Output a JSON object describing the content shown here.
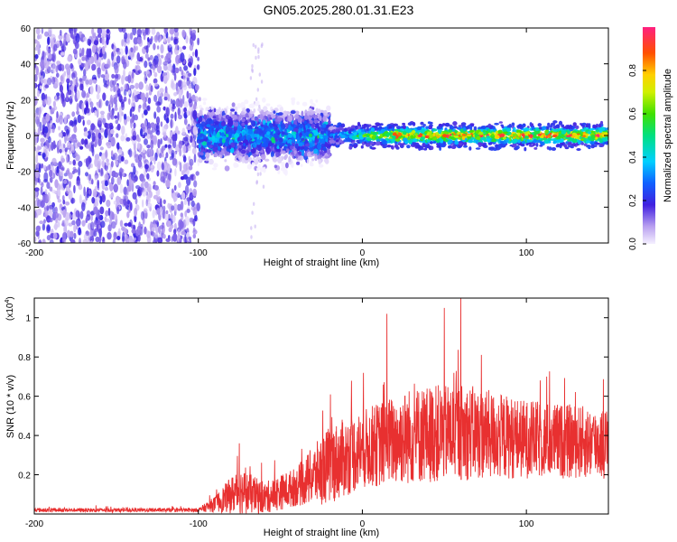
{
  "title": "GN05.2025.280.01.31.E23",
  "chart_data": [
    {
      "type": "heatmap",
      "xlabel": "Height of straight line (km)",
      "ylabel": "Frequency (Hz)",
      "xlim": [
        -200,
        150
      ],
      "ylim": [
        -60,
        60
      ],
      "xticks": [
        -200,
        -100,
        0,
        100
      ],
      "yticks": [
        -60,
        -40,
        -20,
        0,
        20,
        40,
        60
      ],
      "colorbar": {
        "label": "Normalized spectral amplitude",
        "range": [
          0.0,
          1.0
        ],
        "ticks": [
          0.0,
          0.2,
          0.4,
          0.6,
          0.8
        ]
      },
      "regions": [
        {
          "x_range": [
            -200,
            -100
          ],
          "description": "broadband noise",
          "amplitude": 0.1
        },
        {
          "x_range": [
            -100,
            -20
          ],
          "center_freq_hz": 0,
          "half_width_hz": 12,
          "amplitude": 0.25
        },
        {
          "x_range": [
            -20,
            150
          ],
          "center_freq_hz": 0,
          "half_width_hz": 5,
          "amplitude": 0.8
        }
      ]
    },
    {
      "type": "line",
      "xlabel": "Height of straight line (km)",
      "ylabel": "SNR (10 * v/v)",
      "yscale_label": "(x10",
      "yscale_exp": "4",
      "xlim": [
        -200,
        150
      ],
      "ylim": [
        0,
        1.1
      ],
      "xticks": [
        -200,
        -100,
        0,
        100
      ],
      "yticks": [
        0.2,
        0.4,
        0.6,
        0.8,
        1.0
      ],
      "series": [
        {
          "name": "SNR",
          "color": "#e83030",
          "envelope": [
            {
              "x": -200,
              "mean": 0.02,
              "spread": 0.01
            },
            {
              "x": -100,
              "mean": 0.02,
              "spread": 0.01
            },
            {
              "x": -90,
              "mean": 0.05,
              "spread": 0.04
            },
            {
              "x": -75,
              "mean": 0.12,
              "spread": 0.12
            },
            {
              "x": -60,
              "mean": 0.08,
              "spread": 0.08
            },
            {
              "x": -40,
              "mean": 0.14,
              "spread": 0.1
            },
            {
              "x": -20,
              "mean": 0.25,
              "spread": 0.2
            },
            {
              "x": 0,
              "mean": 0.33,
              "spread": 0.2
            },
            {
              "x": 30,
              "mean": 0.4,
              "spread": 0.25
            },
            {
              "x": 60,
              "mean": 0.42,
              "spread": 0.25
            },
            {
              "x": 100,
              "mean": 0.38,
              "spread": 0.2
            },
            {
              "x": 150,
              "mean": 0.36,
              "spread": 0.18
            }
          ],
          "peaks": [
            {
              "x": 15,
              "y": 1.02
            },
            {
              "x": 50,
              "y": 1.05
            },
            {
              "x": 60,
              "y": 1.1
            },
            {
              "x": -75,
              "y": 0.36
            }
          ]
        }
      ]
    }
  ]
}
